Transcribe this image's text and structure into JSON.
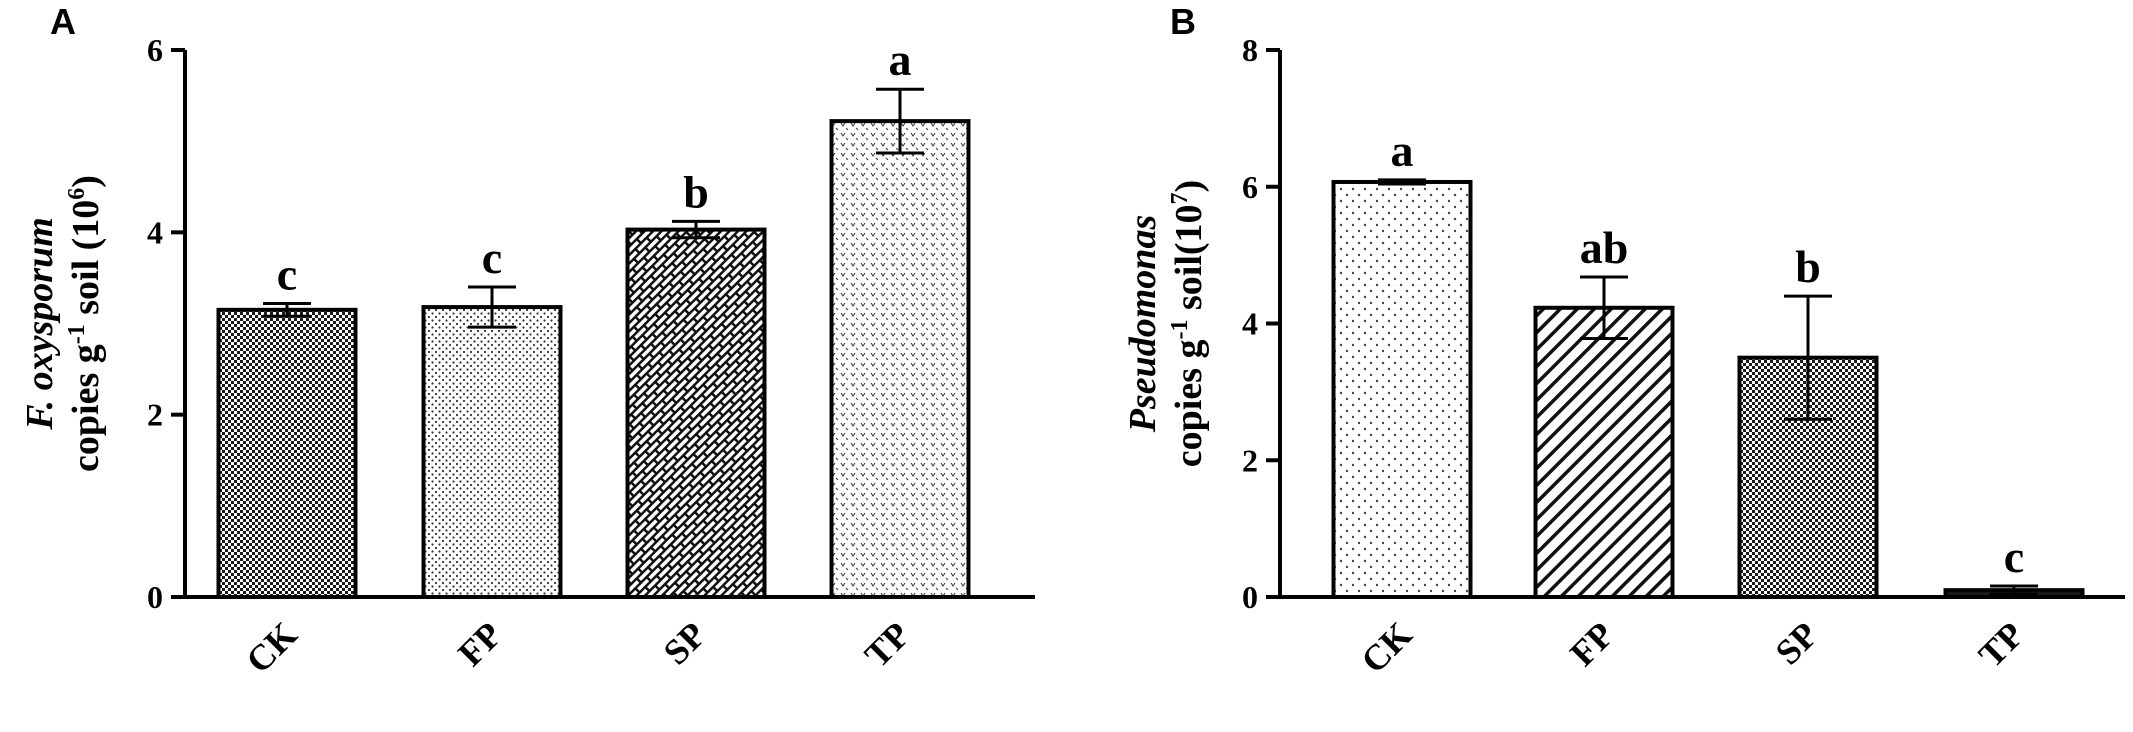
{
  "chart_data": [
    {
      "type": "bar",
      "panel": "A",
      "categories": [
        "CK",
        "FP",
        "SP",
        "TP"
      ],
      "values": [
        3.15,
        3.18,
        4.03,
        5.22
      ],
      "errors": [
        0.07,
        0.22,
        0.09,
        0.35
      ],
      "significance": [
        "c",
        "c",
        "b",
        "a"
      ],
      "patterns": [
        "fine-checker",
        "fine-dots",
        "brick",
        "chevron-dots"
      ],
      "ylim": [
        0,
        6
      ],
      "yticks": [
        0,
        2,
        4,
        6
      ],
      "ylabel_line1": "F. oxysporum",
      "ylabel_line2_pre": "copies g",
      "ylabel_line2_sup": "-1",
      "ylabel_line2_mid": " soil (10",
      "ylabel_line2_sup2": "6",
      "ylabel_line2_post": ")",
      "grid": false
    },
    {
      "type": "bar",
      "panel": "B",
      "categories": [
        "CK",
        "FP",
        "SP",
        "TP"
      ],
      "values": [
        6.07,
        4.23,
        3.5,
        0.1
      ],
      "errors": [
        0.03,
        0.45,
        0.9,
        0.06
      ],
      "significance": [
        "a",
        "ab",
        "b",
        "c"
      ],
      "patterns": [
        "sparse-dots",
        "diagonal-lines",
        "fine-checker",
        "solid-dark"
      ],
      "ylim": [
        0,
        8
      ],
      "yticks": [
        0,
        2,
        4,
        6,
        8
      ],
      "ylabel_line1": "Pseudomonas",
      "ylabel_line2_pre": "copies g",
      "ylabel_line2_sup": "-1",
      "ylabel_line2_mid": " soil(10",
      "ylabel_line2_sup2": "7",
      "ylabel_line2_post": ")",
      "grid": false
    }
  ]
}
